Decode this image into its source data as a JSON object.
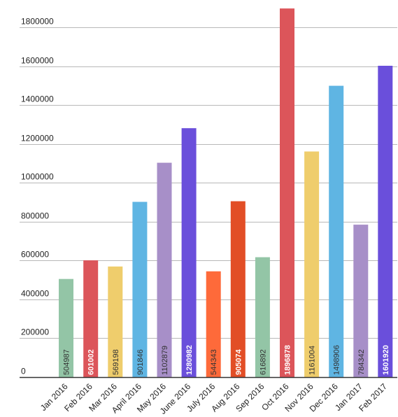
{
  "chart_data": {
    "type": "bar",
    "title": "",
    "xlabel": "",
    "ylabel": "",
    "ylim": [
      0,
      1800000
    ],
    "yticks": [
      0,
      200000,
      400000,
      600000,
      800000,
      1000000,
      1200000,
      1400000,
      1600000,
      1800000
    ],
    "ytick_labels": [
      "0",
      "200000",
      "400000",
      "600000",
      "800000",
      "1000000",
      "1200000",
      "1400000",
      "1600000",
      "1800000"
    ],
    "grid": true,
    "legend": false,
    "categories": [
      "Jan 2016",
      "Feb 2016",
      "Mar 2016",
      "April 2016",
      "May 2016",
      "June 2016",
      "July 2016",
      "Aug 2016",
      "Sep 2016",
      "Oct 2016",
      "Nov 2016",
      "Dec 2016",
      "Jan 2017",
      "Feb 2017"
    ],
    "values": [
      504987,
      601002,
      569198,
      901846,
      1102879,
      1280982,
      544343,
      905074,
      616892,
      1896878,
      1161004,
      1498906,
      784342,
      1601920
    ],
    "value_labels": [
      "504987",
      "601002",
      "569198",
      "901846",
      "1102879",
      "1280982",
      "544343",
      "905074",
      "616892",
      "1896878",
      "1161004",
      "1498906",
      "784342",
      "1601920"
    ],
    "colors": [
      "#93c5a6",
      "#dc555a",
      "#efcd6c",
      "#5fb5e3",
      "#a78fc8",
      "#6a4fdb",
      "#fe6a3a",
      "#e24e26",
      "#93c5a6",
      "#dc555a",
      "#efcd6c",
      "#5fb5e3",
      "#a78fc8",
      "#6a4fdb"
    ],
    "label_colors": [
      "#333333",
      "#ffffff",
      "#333333",
      "#333333",
      "#333333",
      "#ffffff",
      "#333333",
      "#ffffff",
      "#333333",
      "#ffffff",
      "#333333",
      "#333333",
      "#333333",
      "#ffffff"
    ],
    "label_bold": [
      false,
      true,
      false,
      false,
      false,
      true,
      false,
      true,
      false,
      true,
      false,
      false,
      false,
      true
    ]
  }
}
